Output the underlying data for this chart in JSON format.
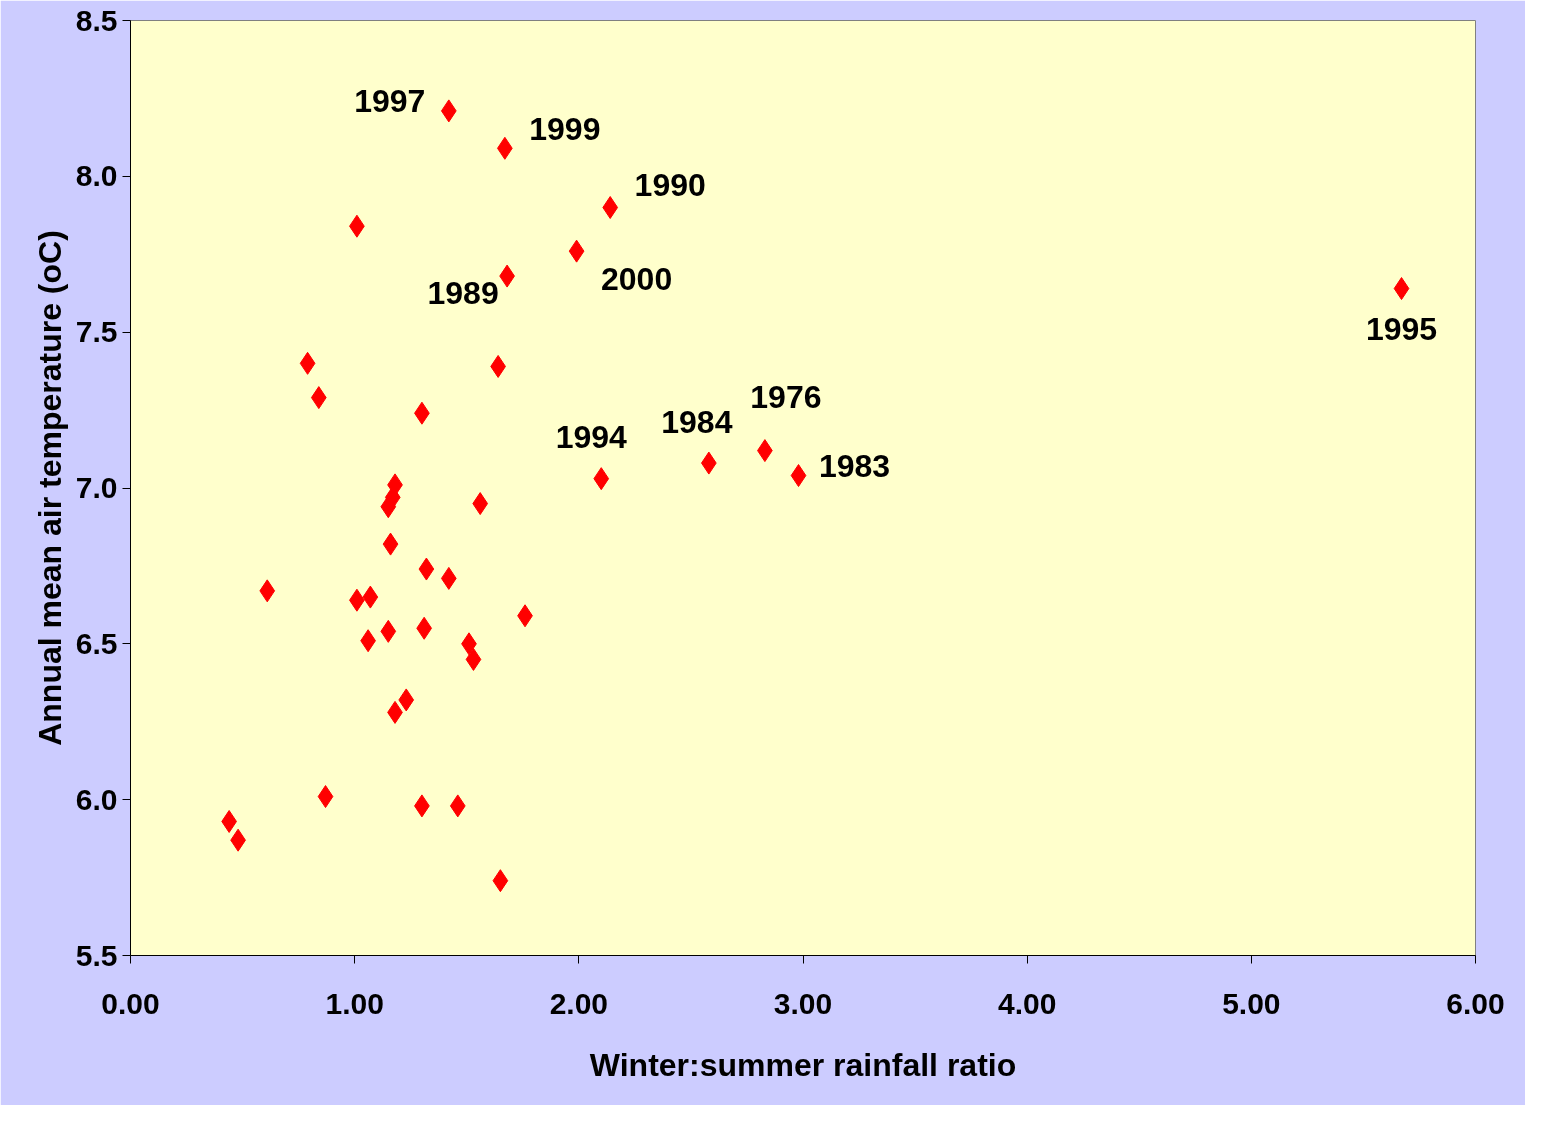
{
  "chart_data": {
    "type": "scatter",
    "xlabel": "Winter:summer rainfall ratio",
    "ylabel": "Annual mean air temperature (oC)",
    "x": [
      1.42,
      1.67,
      2.14,
      1.01,
      1.99,
      1.68,
      5.67,
      0.79,
      1.64,
      0.84,
      1.3,
      2.83,
      2.58,
      2.98,
      2.1,
      1.18,
      1.17,
      1.15,
      1.56,
      1.16,
      1.32,
      1.42,
      0.61,
      1.01,
      1.07,
      1.76,
      1.15,
      1.31,
      1.06,
      1.51,
      1.53,
      1.23,
      1.18,
      0.87,
      1.3,
      1.46,
      0.44,
      0.48,
      1.65
    ],
    "series": [
      {
        "color": "#ff0000",
        "values": [
          8.21,
          8.09,
          7.9,
          7.84,
          7.76,
          7.68,
          7.64,
          7.4,
          7.39,
          7.29,
          7.24,
          7.12,
          7.08,
          7.04,
          7.03,
          7.01,
          6.97,
          6.94,
          6.95,
          6.82,
          6.74,
          6.71,
          6.67,
          6.64,
          6.65,
          6.59,
          6.54,
          6.55,
          6.51,
          6.5,
          6.45,
          6.32,
          6.28,
          6.01,
          5.98,
          5.98,
          5.93,
          5.87,
          5.74
        ]
      }
    ],
    "xlim": [
      0,
      6
    ],
    "xticks": [
      {
        "value": 0,
        "label": "0.00"
      },
      {
        "value": 1,
        "label": "1.00"
      },
      {
        "value": 2,
        "label": "2.00"
      },
      {
        "value": 3,
        "label": "3.00"
      },
      {
        "value": 4,
        "label": "4.00"
      },
      {
        "value": 5,
        "label": "5.00"
      },
      {
        "value": 6,
        "label": "6.00"
      }
    ],
    "ylim": [
      5.5,
      8.5
    ],
    "yticks": [
      {
        "value": 5.5,
        "label": "5.5"
      },
      {
        "value": 6,
        "label": "6.0"
      },
      {
        "value": 6.5,
        "label": "6.5"
      },
      {
        "value": 7,
        "label": "7.0"
      },
      {
        "value": 7.5,
        "label": "7.5"
      },
      {
        "value": 8,
        "label": "8.0"
      },
      {
        "value": 8.5,
        "label": "8.5"
      }
    ],
    "grid": false,
    "marker": "diamond",
    "annotations": [
      {
        "text": "1997",
        "x": 1.42,
        "y": 8.21
      },
      {
        "text": "1999",
        "x": 1.67,
        "y": 8.09
      },
      {
        "text": "1990",
        "x": 2.14,
        "y": 7.9
      },
      {
        "text": "2000",
        "x": 1.99,
        "y": 7.76
      },
      {
        "text": "1989",
        "x": 1.68,
        "y": 7.68
      },
      {
        "text": "1995",
        "x": 5.67,
        "y": 7.64
      },
      {
        "text": "1976",
        "x": 2.83,
        "y": 7.12
      },
      {
        "text": "1984",
        "x": 2.58,
        "y": 7.08
      },
      {
        "text": "1983",
        "x": 2.98,
        "y": 7.04
      },
      {
        "text": "1994",
        "x": 2.1,
        "y": 7.03
      }
    ]
  }
}
